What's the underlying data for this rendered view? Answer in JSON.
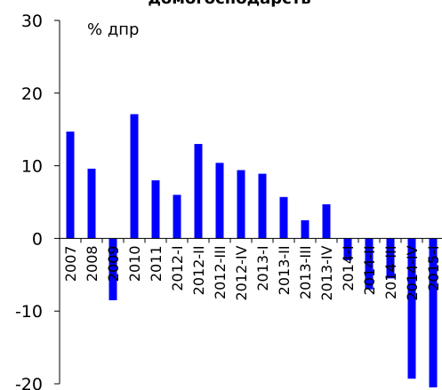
{
  "chart_data": {
    "type": "bar",
    "title": "домогосподарств",
    "unit_label": "% дпр",
    "ylim": [
      -20,
      30
    ],
    "yticks": [
      30,
      20,
      10,
      0,
      -10,
      -20
    ],
    "bar_color": "#0000ff",
    "categories": [
      "2007",
      "2008",
      "2009",
      "2010",
      "2011",
      "2012-I",
      "2012-II",
      "2012-III",
      "2012-IV",
      "2013-I",
      "2013-II",
      "2013-III",
      "2013-IV",
      "2014-I",
      "2014-II",
      "2014-III",
      "2014-IV",
      "2015-I"
    ],
    "values": [
      14.7,
      9.6,
      -8.5,
      17.1,
      8.0,
      6.0,
      13.0,
      10.4,
      9.4,
      8.9,
      5.7,
      2.5,
      4.7,
      -3.0,
      -7.0,
      -5.5,
      -19.3,
      -20.5
    ]
  }
}
